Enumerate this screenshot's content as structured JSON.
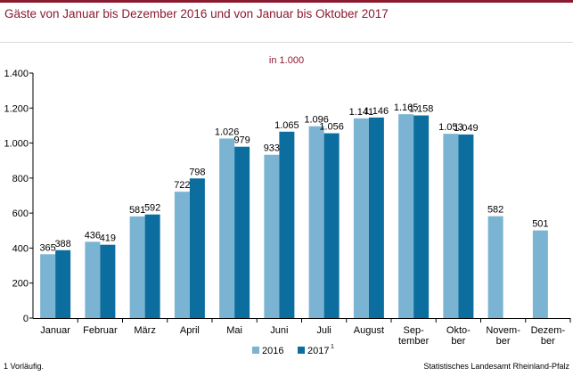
{
  "header": {
    "title": "Gäste von Januar bis Dezember 2016 und von Januar bis Oktober 2017",
    "unit": "in 1.000"
  },
  "footer": {
    "footnote": "1 Vorläufig.",
    "source": "Statistisches Landesamt Rheinland-Pfalz"
  },
  "colors": {
    "brand": "#8b1a2e",
    "series_2016": "#7ab4d2",
    "series_2017": "#0b6e9e"
  },
  "chart_data": {
    "type": "bar",
    "categories": [
      [
        "Januar"
      ],
      [
        "Februar"
      ],
      [
        "März"
      ],
      [
        "April"
      ],
      [
        "Mai"
      ],
      [
        "Juni"
      ],
      [
        "Juli"
      ],
      [
        "August"
      ],
      [
        "Sep-",
        "tember"
      ],
      [
        "Okto-",
        "ber"
      ],
      [
        "Novem-",
        "ber"
      ],
      [
        "Dezem-",
        "ber"
      ]
    ],
    "series": [
      {
        "name": "2016",
        "values": [
          365,
          436,
          581,
          722,
          1026,
          933,
          1096,
          1141,
          1165,
          1053,
          582,
          501
        ]
      },
      {
        "name": "2017",
        "superscript": "1",
        "values": [
          388,
          419,
          592,
          798,
          979,
          1065,
          1056,
          1146,
          1158,
          1049,
          null,
          null
        ]
      }
    ],
    "ylim": [
      0,
      1400
    ],
    "yticks": [
      0,
      200,
      400,
      600,
      800,
      1000,
      1200,
      1400
    ],
    "ytick_labels": [
      "0",
      "200",
      "400",
      "600",
      "800",
      "1.000",
      "1.200",
      "1.400"
    ],
    "data_labels": [
      [
        "365",
        "436",
        "581",
        "722",
        "1.026",
        "933",
        "1.096",
        "1.141",
        "1.165",
        "1.053",
        "582",
        "501"
      ],
      [
        "388",
        "419",
        "592",
        "798",
        "979",
        "1.065",
        "1.056",
        "1.146",
        "1.158",
        "1.049",
        "",
        ""
      ]
    ],
    "grid": false,
    "legend_position": "bottom-center"
  }
}
